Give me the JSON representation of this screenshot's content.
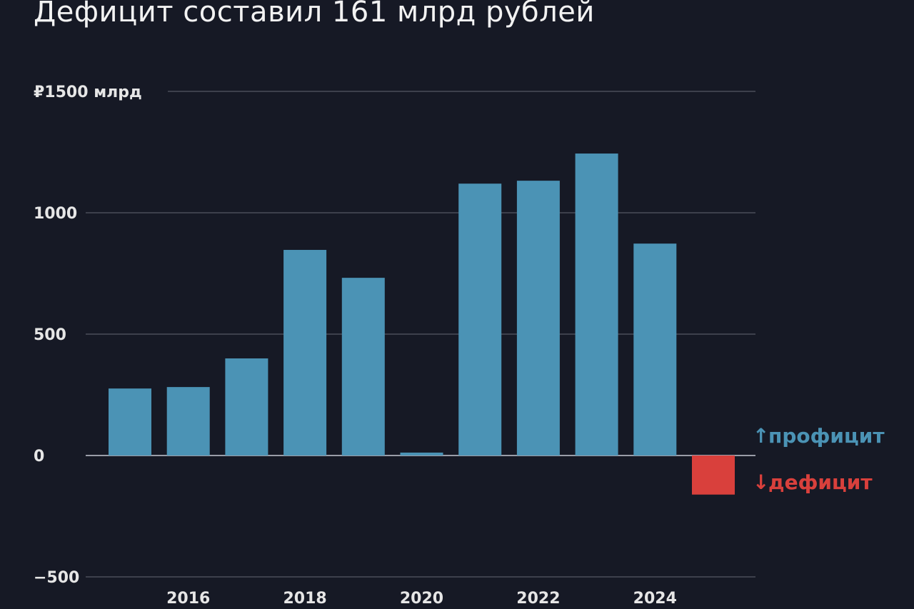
{
  "title": "Дефицит составил 161 млрд рублей",
  "colors": {
    "background": "#161925",
    "surplus": "#4b93b5",
    "deficit": "#d9403c",
    "grid": "#4a4d5a"
  },
  "chart_data": {
    "type": "bar",
    "title": "Дефицит составил 161 млрд рублей",
    "x": [
      2015,
      2016,
      2017,
      2018,
      2019,
      2020,
      2021,
      2022,
      2023,
      2024,
      2025
    ],
    "values": [
      276,
      282,
      400,
      847,
      732,
      12,
      1120,
      1132,
      1244,
      873,
      -161
    ],
    "ylim": [
      -500,
      1500
    ],
    "yticks": [
      -500,
      0,
      500,
      1000,
      1500
    ],
    "ytick_labels": [
      "−500",
      "0",
      "500",
      "1000",
      "₽1500 млрд"
    ],
    "xtick_labels": [
      "2016",
      "2018",
      "2020",
      "2022",
      "2024"
    ],
    "xticks": [
      2016,
      2018,
      2020,
      2022,
      2024
    ],
    "grid": true,
    "legend": {
      "position": "right",
      "entries": [
        {
          "label": "профицит",
          "arrow": "↑",
          "color": "#4b93b5"
        },
        {
          "label": "дефицит",
          "arrow": "↓",
          "color": "#d9403c"
        }
      ]
    }
  }
}
